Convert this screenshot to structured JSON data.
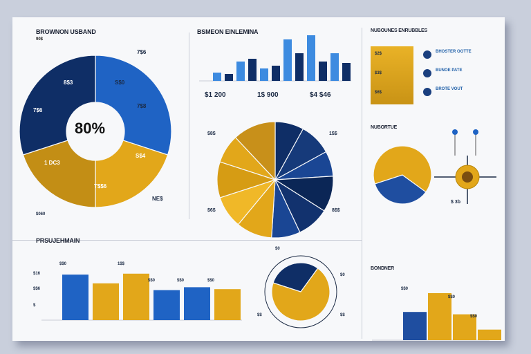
{
  "colors": {
    "navy": "#0f2e66",
    "blue": "#1f63c4",
    "lightblue": "#3d8be0",
    "gold": "#e2a71a",
    "darkgold": "#b8860b",
    "grid": "#c8ccd6"
  },
  "panels": {
    "donut": {
      "title": "BROWNON USBAND",
      "subtitle": "90$",
      "center": "80%",
      "labels": [
        "8$3",
        "S$0",
        "7$8",
        "S$4",
        "7$6",
        "1 DC3",
        "T$$6",
        "NE$"
      ],
      "corner_labels": [
        "7$6"
      ],
      "footer": "$060"
    },
    "top_bar": {
      "title": "BSMEON EINLEMINA",
      "labels": [
        "$1 200",
        "1$ 900",
        "$4 $46"
      ]
    },
    "top_right_list": {
      "title": "NUBOUNES ENRUBBLES",
      "items": [
        {
          "tag": "$2$",
          "text": "BHOSTER OOTTE"
        },
        {
          "tag": "$3$",
          "text": "BUNOE PATE"
        },
        {
          "tag": "$6$",
          "text": "BROTE VOUT"
        }
      ]
    },
    "center_pie": {
      "labels": [
        "$8$",
        "1$$",
        "$6$",
        "8$$"
      ]
    },
    "right_mid": {
      "title": "NUBORTUE",
      "label": "$ 3b"
    },
    "bottom_bar": {
      "title": "PRSUJEHMAIN",
      "labels": [
        "$$0",
        "1$$",
        "$$0",
        "$$0",
        "$$0"
      ],
      "yticks": [
        "$16",
        "$$6",
        "$"
      ]
    },
    "bottom_pie": {
      "labels": [
        "$0",
        "$0",
        "$$",
        "$$"
      ]
    },
    "bottom_right": {
      "title": "BONDNER",
      "labels": [
        "$$0",
        "$$0",
        "$$0"
      ]
    }
  },
  "chart_data": [
    {
      "type": "pie",
      "title": "BROWNON USBAND",
      "values": [
        30,
        20,
        20,
        30
      ],
      "colors": [
        "#1f63c4",
        "#e2a71a",
        "#c38e15",
        "#0f2e66"
      ]
    },
    {
      "type": "bar",
      "title": "BSMEON EINLEMINA",
      "values": [
        6,
        5,
        14,
        16,
        9,
        11,
        30,
        20,
        33,
        14,
        20,
        13
      ],
      "ylim": [
        0,
        35
      ]
    },
    {
      "type": "pie",
      "values": [
        35,
        65
      ],
      "colors": [
        "#1f4ea0",
        "#e2a71a"
      ]
    },
    {
      "type": "bar",
      "title": "PRSUJEHMAIN",
      "values": [
        47,
        38,
        48,
        31,
        34,
        32
      ],
      "colors": [
        "#1f63c4",
        "#e2a71a",
        "#e2a71a",
        "#1f63c4",
        "#1f63c4",
        "#e2a71a"
      ]
    },
    {
      "type": "bar",
      "title": "BONDNER",
      "values": [
        48,
        80,
        44,
        18
      ],
      "colors": [
        "#1f4ea0",
        "#e2a71a",
        "#e2a71a",
        "#e2a71a"
      ]
    }
  ]
}
